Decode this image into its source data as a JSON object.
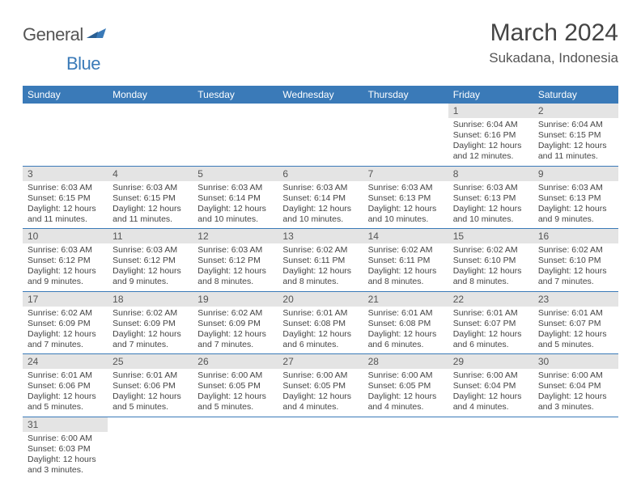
{
  "logo": {
    "part1": "General",
    "part2": "Blue"
  },
  "title": "March 2024",
  "location": "Sukadana, Indonesia",
  "weekdays": [
    "Sunday",
    "Monday",
    "Tuesday",
    "Wednesday",
    "Thursday",
    "Friday",
    "Saturday"
  ],
  "colors": {
    "header_bg": "#3a7ab8",
    "header_fg": "#ffffff",
    "daynum_bg": "#e4e4e4",
    "row_divider": "#3a7ab8",
    "logo_accent": "#3a7ab8",
    "text": "#444444"
  },
  "weeks": [
    [
      null,
      null,
      null,
      null,
      null,
      {
        "n": "1",
        "sunrise": "6:04 AM",
        "sunset": "6:16 PM",
        "daylight": "12 hours and 12 minutes."
      },
      {
        "n": "2",
        "sunrise": "6:04 AM",
        "sunset": "6:15 PM",
        "daylight": "12 hours and 11 minutes."
      }
    ],
    [
      {
        "n": "3",
        "sunrise": "6:03 AM",
        "sunset": "6:15 PM",
        "daylight": "12 hours and 11 minutes."
      },
      {
        "n": "4",
        "sunrise": "6:03 AM",
        "sunset": "6:15 PM",
        "daylight": "12 hours and 11 minutes."
      },
      {
        "n": "5",
        "sunrise": "6:03 AM",
        "sunset": "6:14 PM",
        "daylight": "12 hours and 10 minutes."
      },
      {
        "n": "6",
        "sunrise": "6:03 AM",
        "sunset": "6:14 PM",
        "daylight": "12 hours and 10 minutes."
      },
      {
        "n": "7",
        "sunrise": "6:03 AM",
        "sunset": "6:13 PM",
        "daylight": "12 hours and 10 minutes."
      },
      {
        "n": "8",
        "sunrise": "6:03 AM",
        "sunset": "6:13 PM",
        "daylight": "12 hours and 10 minutes."
      },
      {
        "n": "9",
        "sunrise": "6:03 AM",
        "sunset": "6:13 PM",
        "daylight": "12 hours and 9 minutes."
      }
    ],
    [
      {
        "n": "10",
        "sunrise": "6:03 AM",
        "sunset": "6:12 PM",
        "daylight": "12 hours and 9 minutes."
      },
      {
        "n": "11",
        "sunrise": "6:03 AM",
        "sunset": "6:12 PM",
        "daylight": "12 hours and 9 minutes."
      },
      {
        "n": "12",
        "sunrise": "6:03 AM",
        "sunset": "6:12 PM",
        "daylight": "12 hours and 8 minutes."
      },
      {
        "n": "13",
        "sunrise": "6:02 AM",
        "sunset": "6:11 PM",
        "daylight": "12 hours and 8 minutes."
      },
      {
        "n": "14",
        "sunrise": "6:02 AM",
        "sunset": "6:11 PM",
        "daylight": "12 hours and 8 minutes."
      },
      {
        "n": "15",
        "sunrise": "6:02 AM",
        "sunset": "6:10 PM",
        "daylight": "12 hours and 8 minutes."
      },
      {
        "n": "16",
        "sunrise": "6:02 AM",
        "sunset": "6:10 PM",
        "daylight": "12 hours and 7 minutes."
      }
    ],
    [
      {
        "n": "17",
        "sunrise": "6:02 AM",
        "sunset": "6:09 PM",
        "daylight": "12 hours and 7 minutes."
      },
      {
        "n": "18",
        "sunrise": "6:02 AM",
        "sunset": "6:09 PM",
        "daylight": "12 hours and 7 minutes."
      },
      {
        "n": "19",
        "sunrise": "6:02 AM",
        "sunset": "6:09 PM",
        "daylight": "12 hours and 7 minutes."
      },
      {
        "n": "20",
        "sunrise": "6:01 AM",
        "sunset": "6:08 PM",
        "daylight": "12 hours and 6 minutes."
      },
      {
        "n": "21",
        "sunrise": "6:01 AM",
        "sunset": "6:08 PM",
        "daylight": "12 hours and 6 minutes."
      },
      {
        "n": "22",
        "sunrise": "6:01 AM",
        "sunset": "6:07 PM",
        "daylight": "12 hours and 6 minutes."
      },
      {
        "n": "23",
        "sunrise": "6:01 AM",
        "sunset": "6:07 PM",
        "daylight": "12 hours and 5 minutes."
      }
    ],
    [
      {
        "n": "24",
        "sunrise": "6:01 AM",
        "sunset": "6:06 PM",
        "daylight": "12 hours and 5 minutes."
      },
      {
        "n": "25",
        "sunrise": "6:01 AM",
        "sunset": "6:06 PM",
        "daylight": "12 hours and 5 minutes."
      },
      {
        "n": "26",
        "sunrise": "6:00 AM",
        "sunset": "6:05 PM",
        "daylight": "12 hours and 5 minutes."
      },
      {
        "n": "27",
        "sunrise": "6:00 AM",
        "sunset": "6:05 PM",
        "daylight": "12 hours and 4 minutes."
      },
      {
        "n": "28",
        "sunrise": "6:00 AM",
        "sunset": "6:05 PM",
        "daylight": "12 hours and 4 minutes."
      },
      {
        "n": "29",
        "sunrise": "6:00 AM",
        "sunset": "6:04 PM",
        "daylight": "12 hours and 4 minutes."
      },
      {
        "n": "30",
        "sunrise": "6:00 AM",
        "sunset": "6:04 PM",
        "daylight": "12 hours and 3 minutes."
      }
    ],
    [
      {
        "n": "31",
        "sunrise": "6:00 AM",
        "sunset": "6:03 PM",
        "daylight": "12 hours and 3 minutes."
      },
      null,
      null,
      null,
      null,
      null,
      null
    ]
  ],
  "labels": {
    "sunrise": "Sunrise:",
    "sunset": "Sunset:",
    "daylight": "Daylight:"
  }
}
